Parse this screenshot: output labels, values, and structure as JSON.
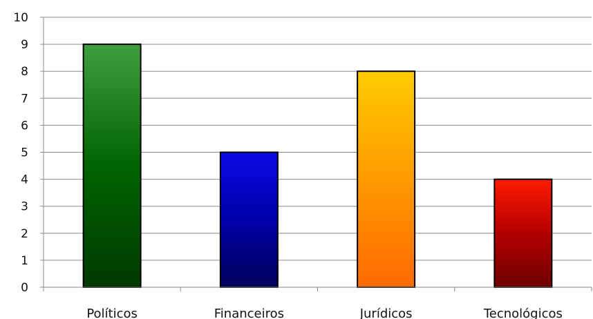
{
  "chart_data": {
    "type": "bar",
    "title": "",
    "xlabel": "",
    "ylabel": "",
    "categories": [
      "Políticos",
      "Financeiros",
      "Jurídicos",
      "Tecnológicos"
    ],
    "values": [
      9,
      5,
      8,
      4
    ],
    "ylim": [
      0,
      10
    ],
    "yticks": [
      "0",
      "1",
      "2",
      "3",
      "4",
      "5",
      "6",
      "7",
      "8",
      "9",
      "10"
    ],
    "grid": true,
    "legend": "none",
    "bar_gradients": [
      {
        "top": "#3e9f3e",
        "mid": "#006400",
        "bottom": "#003a00"
      },
      {
        "top": "#0a0ae6",
        "mid": "#0000a8",
        "bottom": "#00005a"
      },
      {
        "top": "#ffcc00",
        "mid": "#ff9a00",
        "bottom": "#ff6a00"
      },
      {
        "top": "#ff1a00",
        "mid": "#b30000",
        "bottom": "#6e0000"
      }
    ]
  }
}
